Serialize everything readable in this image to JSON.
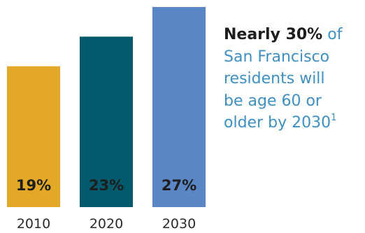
{
  "chart_data": {
    "type": "bar",
    "categories": [
      "2010",
      "2020",
      "2030"
    ],
    "values": [
      19,
      23,
      27
    ],
    "value_labels": [
      "19%",
      "23%",
      "27%"
    ],
    "colors": [
      "#e2a826",
      "#035a6c",
      "#5a86c5"
    ],
    "ylim": [
      0,
      27
    ],
    "grid": false,
    "legend": "none"
  },
  "annotation": {
    "emphasis": "Nearly 30%",
    "lines": [
      "of",
      "San Francisco",
      "residents will",
      "be age 60 or",
      "older by 2030"
    ],
    "footnote": "1"
  }
}
